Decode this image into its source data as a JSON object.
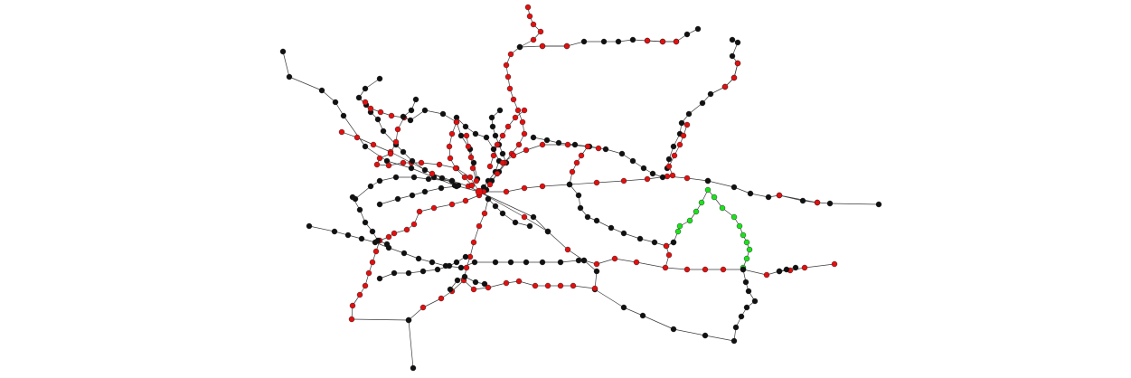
{
  "diagram": {
    "type": "network-graph",
    "description_free": true,
    "palette": {
      "black": "#111111",
      "red": "#e01010",
      "green": "#1ee01e",
      "edge": "#3a3a3a",
      "background": "#ffffff"
    },
    "node_categories": [
      "black",
      "red",
      "green"
    ]
  }
}
